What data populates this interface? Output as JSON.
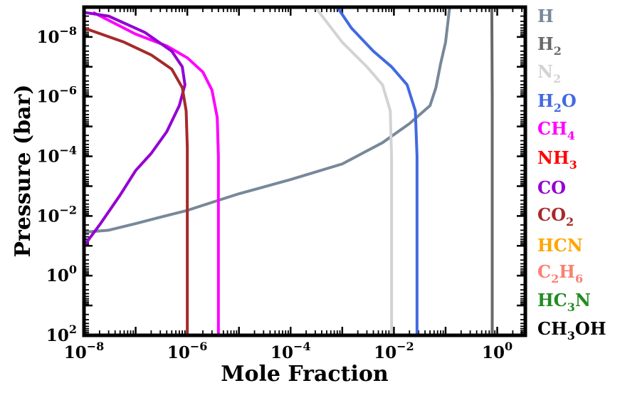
{
  "chart_data": {
    "type": "line",
    "title": "",
    "xlabel": "Mole Fraction",
    "ylabel": "Pressure (bar)",
    "x_scale": "log",
    "y_scale": "log",
    "y_inverted": true,
    "xlim": [
      1e-08,
      3.5
    ],
    "ylim": [
      100,
      1e-09
    ],
    "x_ticks": [
      {
        "value": 1e-08,
        "base": "10",
        "exp": "−8"
      },
      {
        "value": 1e-06,
        "base": "10",
        "exp": "−6"
      },
      {
        "value": 0.0001,
        "base": "10",
        "exp": "−4"
      },
      {
        "value": 0.01,
        "base": "10",
        "exp": "−2"
      },
      {
        "value": 1,
        "base": "10",
        "exp": "0"
      }
    ],
    "y_ticks": [
      {
        "value": 1e-08,
        "base": "10",
        "exp": "−8"
      },
      {
        "value": 1e-06,
        "base": "10",
        "exp": "−6"
      },
      {
        "value": 0.0001,
        "base": "10",
        "exp": "−4"
      },
      {
        "value": 0.01,
        "base": "10",
        "exp": "−2"
      },
      {
        "value": 1,
        "base": "10",
        "exp": "0"
      },
      {
        "value": 100,
        "base": "10",
        "exp": "2"
      }
    ],
    "legend_position": "right-outside",
    "series": [
      {
        "name": "H",
        "label_parts": [
          {
            "t": "H"
          }
        ],
        "color": "#778899",
        "points": [
          [
            1e-08,
            0.035
          ],
          [
            3e-08,
            0.03
          ],
          [
            1e-07,
            0.018
          ],
          [
            3e-07,
            0.011
          ],
          [
            1e-06,
            0.0065
          ],
          [
            3e-06,
            0.0035
          ],
          [
            1e-05,
            0.0018
          ],
          [
            0.0001,
            0.0006
          ],
          [
            0.001,
            0.00018
          ],
          [
            0.006,
            3.5e-05
          ],
          [
            0.02,
            8e-06
          ],
          [
            0.05,
            2e-06
          ],
          [
            0.065,
            5e-07
          ],
          [
            0.08,
            8e-08
          ],
          [
            0.1,
            1.5e-08
          ],
          [
            0.12,
            1e-09
          ]
        ]
      },
      {
        "name": "H2",
        "label_parts": [
          {
            "t": "H"
          },
          {
            "t": "2",
            "sub": true
          }
        ],
        "color": "#696969",
        "points": [
          [
            0.8,
            100
          ],
          [
            0.8,
            1e-06
          ],
          [
            0.79,
            1e-08
          ],
          [
            0.785,
            1e-09
          ]
        ]
      },
      {
        "name": "N2",
        "label_parts": [
          {
            "t": "N"
          },
          {
            "t": "2",
            "sub": true
          }
        ],
        "color": "#d3d3d3",
        "points": [
          [
            0.009,
            100
          ],
          [
            0.009,
            0.0001
          ],
          [
            0.0085,
            3e-06
          ],
          [
            0.006,
            4e-07
          ],
          [
            0.003,
            1e-07
          ],
          [
            0.001,
            1.5e-08
          ],
          [
            0.0003,
            1e-09
          ]
        ]
      },
      {
        "name": "H2O",
        "label_parts": [
          {
            "t": "H"
          },
          {
            "t": "2",
            "sub": true
          },
          {
            "t": "O"
          }
        ],
        "color": "#4169e1",
        "points": [
          [
            0.028,
            100
          ],
          [
            0.028,
            0.0001
          ],
          [
            0.026,
            3e-06
          ],
          [
            0.018,
            4e-07
          ],
          [
            0.009,
            1e-07
          ],
          [
            0.004,
            3e-08
          ],
          [
            0.0015,
            5e-09
          ],
          [
            0.0008,
            1e-09
          ]
        ]
      },
      {
        "name": "CH4",
        "label_parts": [
          {
            "t": "CH"
          },
          {
            "t": "4",
            "sub": true
          }
        ],
        "color": "#ff00ff",
        "points": [
          [
            4e-06,
            100
          ],
          [
            4e-06,
            0.0001
          ],
          [
            3.8e-06,
            5e-06
          ],
          [
            3e-06,
            6e-07
          ],
          [
            2e-06,
            1.5e-07
          ],
          [
            1e-06,
            5e-08
          ],
          [
            4e-07,
            2e-08
          ],
          [
            1e-07,
            8e-09
          ],
          [
            1.5e-08,
            1.5e-09
          ]
        ]
      },
      {
        "name": "NH3",
        "label_parts": [
          {
            "t": "NH"
          },
          {
            "t": "3",
            "sub": true
          }
        ],
        "color": "#ff0000",
        "points": []
      },
      {
        "name": "CO",
        "label_parts": [
          {
            "t": "CO"
          }
        ],
        "color": "#9400d3",
        "points": [
          [
            1e-08,
            0.1
          ],
          [
            2e-08,
            0.02
          ],
          [
            5e-08,
            0.002
          ],
          [
            1e-07,
            0.0003
          ],
          [
            2e-07,
            8e-05
          ],
          [
            4e-07,
            1.5e-05
          ],
          [
            7e-07,
            2e-06
          ],
          [
            9e-07,
            4e-07
          ],
          [
            8e-07,
            1e-07
          ],
          [
            5e-07,
            3e-08
          ],
          [
            1.5e-07,
            7e-09
          ],
          [
            3e-08,
            2e-09
          ],
          [
            1e-08,
            1.5e-09
          ]
        ]
      },
      {
        "name": "CO2",
        "label_parts": [
          {
            "t": "CO"
          },
          {
            "t": "2",
            "sub": true
          }
        ],
        "color": "#a52a2a",
        "points": [
          [
            1e-06,
            100
          ],
          [
            1e-06,
            5e-05
          ],
          [
            9.5e-07,
            3e-06
          ],
          [
            8e-07,
            5e-07
          ],
          [
            5e-07,
            1.2e-07
          ],
          [
            2e-07,
            4e-08
          ],
          [
            6e-08,
            1.5e-08
          ],
          [
            1e-08,
            5e-09
          ]
        ]
      },
      {
        "name": "HCN",
        "label_parts": [
          {
            "t": "HCN"
          }
        ],
        "color": "#ffa500",
        "points": []
      },
      {
        "name": "C2H6",
        "label_parts": [
          {
            "t": "C"
          },
          {
            "t": "2",
            "sub": true
          },
          {
            "t": "H"
          },
          {
            "t": "6",
            "sub": true
          }
        ],
        "color": "#fa8072",
        "points": []
      },
      {
        "name": "HC3N",
        "label_parts": [
          {
            "t": "HC"
          },
          {
            "t": "3",
            "sub": true
          },
          {
            "t": "N"
          }
        ],
        "color": "#228b22",
        "points": []
      },
      {
        "name": "CH3OH",
        "label_parts": [
          {
            "t": "CH"
          },
          {
            "t": "3",
            "sub": true
          },
          {
            "t": "OH"
          }
        ],
        "color": "#000000",
        "points": []
      }
    ]
  }
}
